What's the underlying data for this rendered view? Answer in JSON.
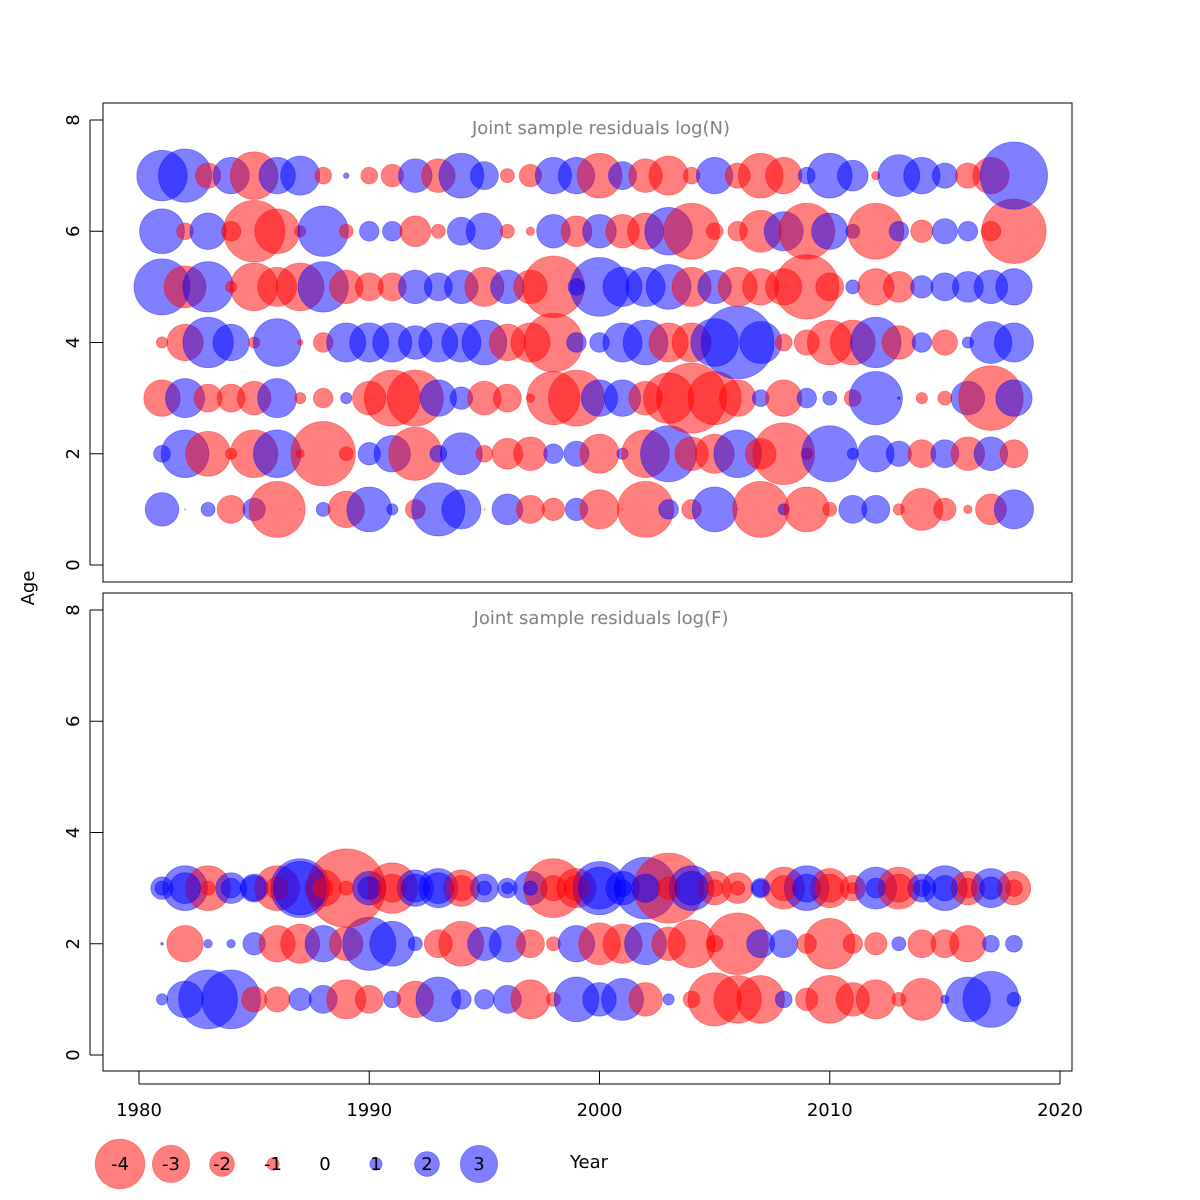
{
  "chart_data": [
    {
      "type": "scatter",
      "title": "Joint sample residuals log(N)",
      "xlabel": "Year",
      "ylabel": "Age",
      "xlim": [
        1980,
        2020
      ],
      "ylim": [
        0,
        8
      ],
      "x_ticks": [
        1980,
        1990,
        2000,
        2010,
        2020
      ],
      "y_ticks": [
        0,
        2,
        4,
        6,
        8
      ],
      "years": [
        1981,
        1982,
        1983,
        1984,
        1985,
        1986,
        1987,
        1988,
        1989,
        1990,
        1991,
        1992,
        1993,
        1994,
        1995,
        1996,
        1997,
        1998,
        1999,
        2000,
        2001,
        2002,
        2003,
        2004,
        2005,
        2006,
        2007,
        2008,
        2009,
        2010,
        2011,
        2012,
        2013,
        2014,
        2015,
        2016,
        2017,
        2018
      ],
      "ages": [
        1,
        2,
        3,
        4,
        5,
        6,
        7
      ],
      "residuals": [
        [
          1.2,
          0.0,
          0.5,
          1.0,
          0.8,
          2.0,
          -1.0,
          0.5,
          1.3,
          1.6,
          0.4,
          0.7,
          1.9,
          1.4,
          -2.5,
          1.1,
          1.0,
          0.8,
          0.8,
          1.4,
          -1.7,
          2.0,
          0.7,
          0.7,
          1.6,
          0.0,
          2.0,
          0.4,
          1.6,
          0.5,
          1.0,
          1.0,
          0.4,
          1.5,
          0.8,
          0.3,
          1.1,
          1.4
        ],
        [
          0.6,
          1.7,
          1.6,
          0.4,
          1.7,
          1.7,
          0.3,
          2.3,
          0.5,
          0.8,
          1.3,
          1.9,
          0.6,
          1.5,
          0.6,
          1.1,
          1.2,
          0.7,
          0.9,
          1.4,
          0.4,
          1.7,
          2.0,
          1.2,
          1.4,
          1.7,
          1.1,
          2.2,
          0.4,
          2.0,
          0.4,
          1.3,
          0.9,
          1.0,
          1.0,
          1.2,
          1.2,
          1.0
        ],
        [
          1.3,
          1.4,
          1.0,
          1.0,
          1.2,
          1.4,
          0.4,
          0.7,
          0.4,
          1.2,
          2.0,
          2.0,
          1.3,
          0.8,
          1.2,
          1.0,
          0.3,
          1.9,
          2.0,
          1.3,
          1.3,
          1.2,
          1.8,
          2.5,
          1.9,
          1.3,
          0.6,
          1.3,
          0.7,
          0.5,
          0.6,
          1.9,
          0.1,
          0.4,
          0.5,
          1.2,
          2.3,
          1.3
        ],
        [
          0.4,
          1.3,
          1.8,
          1.3,
          0.4,
          1.7,
          0.2,
          0.7,
          1.4,
          1.4,
          1.4,
          1.2,
          1.4,
          1.4,
          1.6,
          1.3,
          1.4,
          2.1,
          0.7,
          0.7,
          1.4,
          1.6,
          1.4,
          1.4,
          1.7,
          2.6,
          1.5,
          0.6,
          0.9,
          1.6,
          1.6,
          1.8,
          1.2,
          0.7,
          0.9,
          0.4,
          1.5,
          1.4
        ],
        [
          2.0,
          1.5,
          1.8,
          0.4,
          1.7,
          1.4,
          1.7,
          1.8,
          1.2,
          1.0,
          1.0,
          1.2,
          1.0,
          1.2,
          1.4,
          1.2,
          1.2,
          2.2,
          0.6,
          2.1,
          1.4,
          1.4,
          1.6,
          1.4,
          1.2,
          1.4,
          1.3,
          1.3,
          2.3,
          1.0,
          0.5,
          1.3,
          1.1,
          0.8,
          1.0,
          1.1,
          1.2,
          1.3
        ],
        [
          1.6,
          0.6,
          1.3,
          0.7,
          2.2,
          1.6,
          0.4,
          1.8,
          0.5,
          0.7,
          0.7,
          1.1,
          0.5,
          1.0,
          1.3,
          0.5,
          0.3,
          1.2,
          1.1,
          1.2,
          1.2,
          1.3,
          1.7,
          2.0,
          0.6,
          0.7,
          1.5,
          1.4,
          2.0,
          1.3,
          0.5,
          2.0,
          0.7,
          0.8,
          0.9,
          0.7,
          0.7,
          2.3
        ],
        [
          1.8,
          1.9,
          0.9,
          1.3,
          1.7,
          1.3,
          1.4,
          0.6,
          0.2,
          0.6,
          0.8,
          1.2,
          1.2,
          1.6,
          1.0,
          0.5,
          0.8,
          1.3,
          1.3,
          1.6,
          1.0,
          1.2,
          1.4,
          0.6,
          1.3,
          0.9,
          1.6,
          1.3,
          0.6,
          1.6,
          1.1,
          0.3,
          1.5,
          1.3,
          0.9,
          0.9,
          1.3,
          2.4
        ]
      ],
      "signs": [
        [
          1,
          1,
          1,
          -1,
          1,
          -1,
          -1,
          1,
          -1,
          1,
          1,
          -1,
          1,
          1,
          -1,
          1,
          -1,
          -1,
          1,
          -1,
          -1,
          -1,
          1,
          -1,
          1,
          -1,
          -1,
          1,
          -1,
          -1,
          1,
          1,
          -1,
          -1,
          -1,
          -1,
          -1,
          1
        ],
        [
          1,
          1,
          -1,
          -1,
          -1,
          1,
          -1,
          -1,
          -1,
          1,
          1,
          -1,
          1,
          1,
          -1,
          -1,
          -1,
          1,
          1,
          -1,
          1,
          -1,
          1,
          -1,
          -1,
          1,
          -1,
          -1,
          -1,
          1,
          1,
          1,
          1,
          -1,
          1,
          -1,
          1,
          -1
        ],
        [
          -1,
          1,
          -1,
          -1,
          -1,
          1,
          -1,
          -1,
          1,
          -1,
          -1,
          -1,
          1,
          1,
          -1,
          -1,
          -1,
          -1,
          -1,
          1,
          1,
          -1,
          -1,
          -1,
          -1,
          -1,
          1,
          -1,
          1,
          1,
          -1,
          1,
          1,
          -1,
          -1,
          1,
          -1,
          1
        ],
        [
          -1,
          -1,
          1,
          1,
          -1,
          1,
          -1,
          -1,
          1,
          1,
          1,
          1,
          1,
          1,
          1,
          -1,
          -1,
          -1,
          1,
          1,
          1,
          1,
          -1,
          -1,
          1,
          1,
          1,
          -1,
          -1,
          -1,
          -1,
          1,
          -1,
          1,
          -1,
          1,
          1,
          1
        ],
        [
          1,
          -1,
          1,
          -1,
          -1,
          -1,
          -1,
          1,
          -1,
          -1,
          -1,
          1,
          1,
          1,
          -1,
          1,
          -1,
          -1,
          1,
          1,
          1,
          1,
          1,
          -1,
          1,
          -1,
          -1,
          -1,
          -1,
          -1,
          1,
          -1,
          -1,
          1,
          1,
          1,
          1,
          1
        ],
        [
          1,
          -1,
          1,
          -1,
          -1,
          -1,
          -1,
          1,
          -1,
          1,
          1,
          -1,
          -1,
          1,
          1,
          -1,
          -1,
          1,
          -1,
          1,
          -1,
          -1,
          1,
          -1,
          -1,
          -1,
          -1,
          1,
          -1,
          1,
          1,
          -1,
          1,
          -1,
          1,
          1,
          -1,
          -1
        ],
        [
          1,
          1,
          -1,
          1,
          -1,
          1,
          1,
          -1,
          1,
          -1,
          -1,
          1,
          -1,
          1,
          1,
          -1,
          -1,
          1,
          1,
          -1,
          1,
          -1,
          -1,
          -1,
          1,
          -1,
          -1,
          -1,
          1,
          1,
          1,
          -1,
          1,
          1,
          1,
          -1,
          -1,
          1
        ]
      ]
    },
    {
      "type": "scatter",
      "title": "Joint sample residuals log(F)",
      "xlabel": "Year",
      "ylabel": "Age",
      "xlim": [
        1980,
        2020
      ],
      "ylim": [
        0,
        8
      ],
      "x_ticks": [
        1980,
        1990,
        2000,
        2010,
        2020
      ],
      "y_ticks": [
        0,
        2,
        4,
        6,
        8
      ],
      "years": [
        1981,
        1982,
        1983,
        1984,
        1985,
        1986,
        1987,
        1988,
        1989,
        1990,
        1991,
        1992,
        1993,
        1994,
        1995,
        1996,
        1997,
        1998,
        1999,
        2000,
        2001,
        2002,
        2003,
        2004,
        2005,
        2006,
        2007,
        2008,
        2009,
        2010,
        2011,
        2012,
        2013,
        2014,
        2015,
        2016,
        2017,
        2018
      ],
      "ages": [
        1,
        2,
        3
      ],
      "residuals": [
        [
          0.4,
          1.3,
          2.1,
          2.1,
          0.9,
          0.9,
          0.8,
          1.0,
          1.4,
          1.0,
          0.6,
          1.3,
          1.6,
          0.7,
          0.7,
          1.0,
          1.4,
          0.5,
          1.6,
          1.2,
          1.5,
          1.2,
          0.4,
          0.6,
          1.9,
          1.7,
          1.7,
          0.6,
          0.8,
          1.7,
          1.2,
          1.4,
          0.5,
          1.5,
          0.3,
          1.6,
          2.0,
          0.5
        ],
        [
          0.1,
          1.3,
          0.3,
          0.3,
          0.8,
          1.3,
          1.4,
          1.3,
          1.2,
          1.9,
          1.6,
          0.5,
          1.0,
          1.6,
          1.2,
          1.3,
          1.0,
          0.5,
          1.3,
          1.5,
          1.4,
          1.5,
          1.2,
          1.7,
          0.6,
          2.2,
          1.0,
          1.0,
          0.7,
          1.8,
          0.7,
          0.8,
          0.5,
          1.0,
          1.0,
          1.3,
          0.6,
          0.6
        ],
        [
          0.8,
          1.6,
          1.6,
          1.1,
          1.0,
          1.6,
          2.1,
          1.3,
          2.8,
          1.2,
          1.8,
          1.3,
          1.4,
          1.3,
          1.0,
          0.7,
          1.2,
          2.1,
          1.4,
          1.9,
          1.2,
          2.2,
          2.5,
          1.6,
          1.2,
          1.1,
          0.7,
          1.5,
          1.6,
          1.4,
          0.9,
          1.5,
          1.5,
          1.0,
          1.6,
          1.2,
          1.4,
          1.2
        ]
      ],
      "signs": [
        [
          1,
          1,
          1,
          1,
          -1,
          -1,
          1,
          1,
          -1,
          -1,
          1,
          -1,
          1,
          1,
          1,
          1,
          -1,
          -1,
          1,
          1,
          1,
          -1,
          1,
          -1,
          -1,
          -1,
          -1,
          1,
          -1,
          -1,
          -1,
          -1,
          -1,
          -1,
          1,
          1,
          1,
          1
        ],
        [
          1,
          -1,
          1,
          1,
          1,
          -1,
          -1,
          1,
          -1,
          1,
          1,
          1,
          -1,
          -1,
          1,
          1,
          -1,
          -1,
          1,
          -1,
          -1,
          1,
          -1,
          -1,
          -1,
          -1,
          1,
          1,
          -1,
          -1,
          -1,
          -1,
          1,
          -1,
          -1,
          -1,
          1,
          1
        ],
        [
          1,
          1,
          -1,
          1,
          1,
          -1,
          1,
          -1,
          -1,
          1,
          -1,
          1,
          1,
          -1,
          1,
          1,
          1,
          -1,
          -1,
          1,
          1,
          1,
          -1,
          1,
          -1,
          -1,
          1,
          -1,
          1,
          -1,
          -1,
          1,
          -1,
          1,
          1,
          -1,
          1,
          -1
        ]
      ],
      "overlay": [
        [
          1,
          1,
          -1,
          1,
          1,
          -1,
          1,
          -1,
          -1,
          1,
          -1,
          1,
          1,
          -1,
          1,
          1,
          1,
          -1,
          -1,
          1,
          1,
          1,
          -1,
          1,
          -1,
          -1,
          1,
          -1,
          1,
          -1,
          -1,
          1,
          -1,
          1,
          1,
          -1,
          1,
          -1
        ],
        [
          0.5,
          1.1,
          0.5,
          0.7,
          0.9,
          0.8,
          1.9,
          0.7,
          0.5,
          0.8,
          1.0,
          1.0,
          1.1,
          0.9,
          0.5,
          0.4,
          0.5,
          0.9,
          0.9,
          1.5,
          0.6,
          1.0,
          0.8,
          1.2,
          0.6,
          0.5,
          0.6,
          0.9,
          1.0,
          1.0,
          0.4,
          0.7,
          1.0,
          0.6,
          0.9,
          0.7,
          0.8,
          0.6
        ]
      ]
    }
  ],
  "legend": {
    "values": [
      "-4",
      "-3",
      "-2",
      "-1",
      "0",
      "1",
      "2",
      "3"
    ],
    "magnitudes": [
      4,
      3,
      2,
      1,
      0,
      1,
      2,
      3
    ],
    "signs": [
      -1,
      -1,
      -1,
      -1,
      0,
      1,
      1,
      1
    ]
  },
  "colors": {
    "negative": "#ff0000",
    "positive": "#0000ff",
    "panel_title": "#808080"
  },
  "labels": {
    "y_axis": "Age",
    "x_axis": "Year"
  }
}
